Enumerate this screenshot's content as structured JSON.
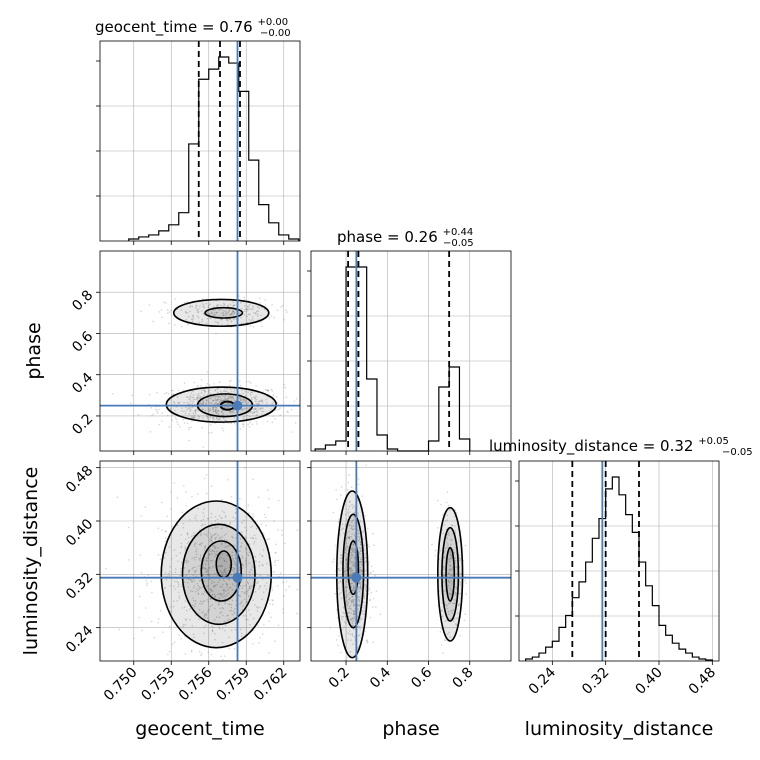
{
  "chart_data": {
    "type": "corner",
    "parameters": [
      "geocent_time",
      "phase",
      "luminosity_distance"
    ],
    "truths": {
      "geocent_time": 0.7583,
      "phase": 0.25,
      "luminosity_distance": 0.315
    },
    "axis_labels": {
      "x": [
        "geocent_time",
        "phase",
        "luminosity_distance"
      ],
      "y": [
        "phase",
        "luminosity_distance"
      ]
    },
    "titles": [
      {
        "param": "geocent_time",
        "prefix": "geocent_time = 0.76",
        "sup": "+0.00",
        "sub": "−0.00"
      },
      {
        "param": "phase",
        "prefix": "phase = 0.26",
        "sup": "+0.44",
        "sub": "−0.05"
      },
      {
        "param": "luminosity_distance",
        "prefix": "luminosity_distance = 0.32",
        "sup": "+0.05",
        "sub": "−0.05"
      }
    ],
    "ranges": {
      "geocent_time": [
        0.7473,
        0.7633
      ],
      "phase": [
        0.03,
        1.0
      ],
      "luminosity_distance": [
        0.19,
        0.49
      ]
    },
    "ticks": {
      "geocent_time": [
        0.75,
        0.753,
        0.756,
        0.759,
        0.762
      ],
      "phase": [
        0.2,
        0.4,
        0.6,
        0.8
      ],
      "luminosity_distance": [
        0.24,
        0.32,
        0.4,
        0.48
      ]
    },
    "tick_labels": {
      "geocent_time": [
        "0.750",
        "0.753",
        "0.756",
        "0.759",
        "0.762"
      ],
      "phase": [
        "0.2",
        "0.4",
        "0.6",
        "0.8"
      ],
      "luminosity_distance": [
        "0.24",
        "0.32",
        "0.40",
        "0.48"
      ]
    },
    "quantiles": {
      "geocent_time": [
        0.7552,
        0.7569,
        0.7585
      ],
      "phase": [
        0.21,
        0.26,
        0.7
      ],
      "luminosity_distance": [
        0.27,
        0.32,
        0.37
      ]
    },
    "histograms": {
      "geocent_time": {
        "bin_edges": [
          0.7496,
          0.7504,
          0.7512,
          0.752,
          0.7528,
          0.7536,
          0.7544,
          0.7552,
          0.756,
          0.7568,
          0.7576,
          0.7584,
          0.7592,
          0.76,
          0.7608,
          0.7616,
          0.7624,
          0.7632
        ],
        "counts": [
          0.01,
          0.02,
          0.03,
          0.05,
          0.08,
          0.14,
          0.48,
          0.8,
          0.85,
          0.91,
          0.88,
          0.74,
          0.4,
          0.18,
          0.09,
          0.03,
          0.01
        ]
      },
      "phase": {
        "bin_edges": [
          0.05,
          0.1,
          0.15,
          0.2,
          0.25,
          0.3,
          0.35,
          0.4,
          0.45,
          0.5,
          0.55,
          0.6,
          0.65,
          0.7,
          0.75,
          0.8
        ],
        "counts": [
          0.01,
          0.03,
          0.05,
          0.92,
          0.92,
          0.36,
          0.08,
          0.01,
          0.0,
          0.0,
          0.0,
          0.05,
          0.32,
          0.42,
          0.06
        ]
      },
      "luminosity_distance": {
        "bin_edges": [
          0.2,
          0.21,
          0.22,
          0.23,
          0.24,
          0.25,
          0.26,
          0.27,
          0.28,
          0.29,
          0.3,
          0.31,
          0.32,
          0.33,
          0.34,
          0.35,
          0.36,
          0.37,
          0.38,
          0.39,
          0.4,
          0.41,
          0.42,
          0.43,
          0.44,
          0.45,
          0.46,
          0.47,
          0.48
        ],
        "counts": [
          0.01,
          0.02,
          0.04,
          0.07,
          0.1,
          0.17,
          0.23,
          0.32,
          0.4,
          0.5,
          0.62,
          0.72,
          0.87,
          0.93,
          0.84,
          0.74,
          0.65,
          0.5,
          0.38,
          0.28,
          0.18,
          0.13,
          0.09,
          0.06,
          0.04,
          0.02,
          0.01,
          0.005
        ]
      }
    },
    "contours_2d": {
      "phase_vs_geocent_time": [
        {
          "cx": 0.7575,
          "cy": 0.25,
          "rx": 0.00055,
          "ry": 0.02,
          "w": 2.0
        },
        {
          "cx": 0.7573,
          "cy": 0.252,
          "rx": 0.0022,
          "ry": 0.055,
          "w": 1.6
        },
        {
          "cx": 0.757,
          "cy": 0.255,
          "rx": 0.0044,
          "ry": 0.085,
          "w": 1.6
        },
        {
          "cx": 0.7572,
          "cy": 0.7,
          "rx": 0.0015,
          "ry": 0.025,
          "w": 1.6
        },
        {
          "cx": 0.757,
          "cy": 0.7,
          "rx": 0.0038,
          "ry": 0.065,
          "w": 1.6
        }
      ],
      "luminosity_distance_vs_geocent_time": [
        {
          "cx": 0.7572,
          "cy": 0.335,
          "rx": 0.0006,
          "ry": 0.02,
          "w": 1.6
        },
        {
          "cx": 0.757,
          "cy": 0.325,
          "rx": 0.0016,
          "ry": 0.045,
          "w": 1.6
        },
        {
          "cx": 0.7568,
          "cy": 0.32,
          "rx": 0.0029,
          "ry": 0.075,
          "w": 1.6
        },
        {
          "cx": 0.7566,
          "cy": 0.32,
          "rx": 0.0044,
          "ry": 0.11,
          "w": 1.6
        }
      ],
      "luminosity_distance_vs_phase": [
        {
          "cx": 0.235,
          "cy": 0.33,
          "rx": 0.025,
          "ry": 0.04,
          "w": 1.6
        },
        {
          "cx": 0.235,
          "cy": 0.325,
          "rx": 0.05,
          "ry": 0.085,
          "w": 1.6
        },
        {
          "cx": 0.23,
          "cy": 0.32,
          "rx": 0.075,
          "ry": 0.125,
          "w": 1.6
        },
        {
          "cx": 0.705,
          "cy": 0.32,
          "rx": 0.02,
          "ry": 0.04,
          "w": 1.6
        },
        {
          "cx": 0.705,
          "cy": 0.32,
          "rx": 0.04,
          "ry": 0.07,
          "w": 1.6
        },
        {
          "cx": 0.705,
          "cy": 0.32,
          "rx": 0.06,
          "ry": 0.1,
          "w": 1.6
        }
      ]
    },
    "grid": true,
    "colors": {
      "truth": "#4a7ab7",
      "contour": "#000000",
      "hist": "#000000",
      "grid": "#b0b0b0",
      "scatter": "#888888"
    }
  }
}
